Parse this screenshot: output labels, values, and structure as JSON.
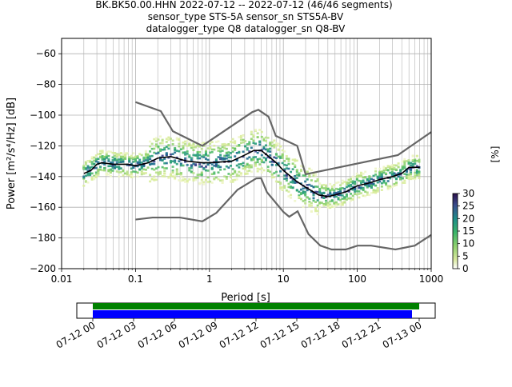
{
  "title_lines": [
    "BK.BK50.00.HHN   2022-07-12 -- 2022-07-12  (46/46 segments)",
    "sensor_type STS-5A sensor_sn STS5A-BV",
    "datalogger_type Q8 datalogger_sn Q8-BV"
  ],
  "chart_data": {
    "type": "heatmap",
    "xlabel": "Period [s]",
    "ylabel": "Power [m²/s⁴/Hz] [dB]",
    "x_scale": "log",
    "xlim": [
      0.01,
      1000
    ],
    "ylim": [
      -200,
      -50
    ],
    "x_ticks": [
      0.01,
      0.1,
      1,
      10,
      100,
      1000
    ],
    "x_tick_labels": [
      "0.01",
      "0.1",
      "1",
      "10",
      "100",
      "1000"
    ],
    "y_ticks": [
      -200,
      -180,
      -160,
      -140,
      -120,
      -100,
      -80,
      -60
    ],
    "y_tick_labels": [
      "−200",
      "−180",
      "−160",
      "−140",
      "−120",
      "−100",
      "−80",
      "−60"
    ],
    "grid": true,
    "noise_model_high": {
      "x": [
        0.1,
        0.22,
        0.32,
        0.8,
        3.8,
        4.6,
        6.3,
        7.9,
        15.4,
        20,
        354.8,
        1000
      ],
      "y": [
        -91.5,
        -97.4,
        -110.5,
        -120,
        -98,
        -96.5,
        -101,
        -113.5,
        -120,
        -138.5,
        -126,
        -111
      ]
    },
    "noise_model_low": {
      "x": [
        0.1,
        0.17,
        0.4,
        0.8,
        1.24,
        2.4,
        4.3,
        5,
        6,
        10,
        12,
        15.6,
        21.9,
        31.6,
        45,
        70,
        101,
        154,
        328,
        600,
        1000
      ],
      "y": [
        -168,
        -166.7,
        -166.7,
        -169.2,
        -163.7,
        -148.6,
        -141.2,
        -141.1,
        -150.2,
        -163,
        -166.2,
        -162.6,
        -177.5,
        -185,
        -187.5,
        -187.5,
        -185,
        -185,
        -187.5,
        -185,
        -178
      ]
    },
    "mode_curve": {
      "x": [
        0.02,
        0.025,
        0.03,
        0.035,
        0.05,
        0.08,
        0.1,
        0.15,
        0.2,
        0.3,
        0.5,
        0.8,
        1,
        2,
        3,
        4,
        5,
        6,
        8,
        10,
        15,
        20,
        30,
        40,
        50,
        70,
        100,
        150,
        200,
        300,
        400,
        500,
        700
      ],
      "y": [
        -138,
        -136,
        -132,
        -131,
        -132,
        -132,
        -133,
        -131,
        -128,
        -127,
        -130,
        -131,
        -131,
        -130,
        -126,
        -123,
        -123,
        -126,
        -131,
        -136,
        -143,
        -147,
        -152,
        -153,
        -152,
        -150,
        -146,
        -144,
        -142,
        -140,
        -138,
        -134,
        -134
      ]
    },
    "colorbar": {
      "label": "[%]",
      "range": [
        0,
        30
      ],
      "ticks": [
        0,
        5,
        10,
        15,
        20,
        25,
        30
      ],
      "colormap": "pqlx"
    },
    "colors": {
      "noise_models": "#666666",
      "mode": "#000000",
      "coverage_data": "#008000",
      "coverage_used": "#0000ff"
    }
  },
  "timeline": {
    "tick_labels": [
      "07-12 00",
      "07-12 03",
      "07-12 06",
      "07-12 09",
      "07-12 12",
      "07-12 15",
      "07-12 18",
      "07-12 21",
      "07-13 00"
    ]
  }
}
